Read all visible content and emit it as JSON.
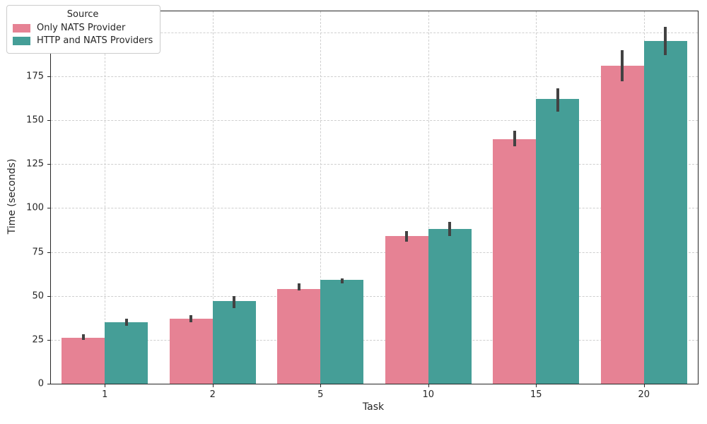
{
  "chart_data": {
    "type": "bar",
    "title": "",
    "xlabel": "Task",
    "ylabel": "Time (seconds)",
    "legend_title": "Source",
    "legend_position": "upper-left",
    "grid": "dashed-both-axes",
    "categories": [
      "1",
      "2",
      "5",
      "10",
      "15",
      "20"
    ],
    "yticks": [
      0,
      25,
      50,
      75,
      100,
      125,
      150,
      175,
      200
    ],
    "ylim": [
      0,
      212
    ],
    "series": [
      {
        "name": "Only NATS Provider",
        "color": "#e68294",
        "values": [
          26,
          37,
          54,
          84,
          139,
          181
        ],
        "err_low": [
          25,
          35,
          53,
          81,
          135,
          172
        ],
        "err_high": [
          28,
          39,
          57,
          87,
          144,
          190
        ]
      },
      {
        "name": "HTTP and NATS Providers",
        "color": "#459e97",
        "values": [
          35,
          47,
          59,
          88,
          162,
          195
        ],
        "err_low": [
          33,
          43,
          57,
          84,
          155,
          187
        ],
        "err_high": [
          37,
          50,
          60,
          92,
          168,
          203
        ]
      }
    ],
    "error_bar_color": "#424242",
    "gridline_color": "#cfcfcf",
    "spine_color": "#262626"
  }
}
